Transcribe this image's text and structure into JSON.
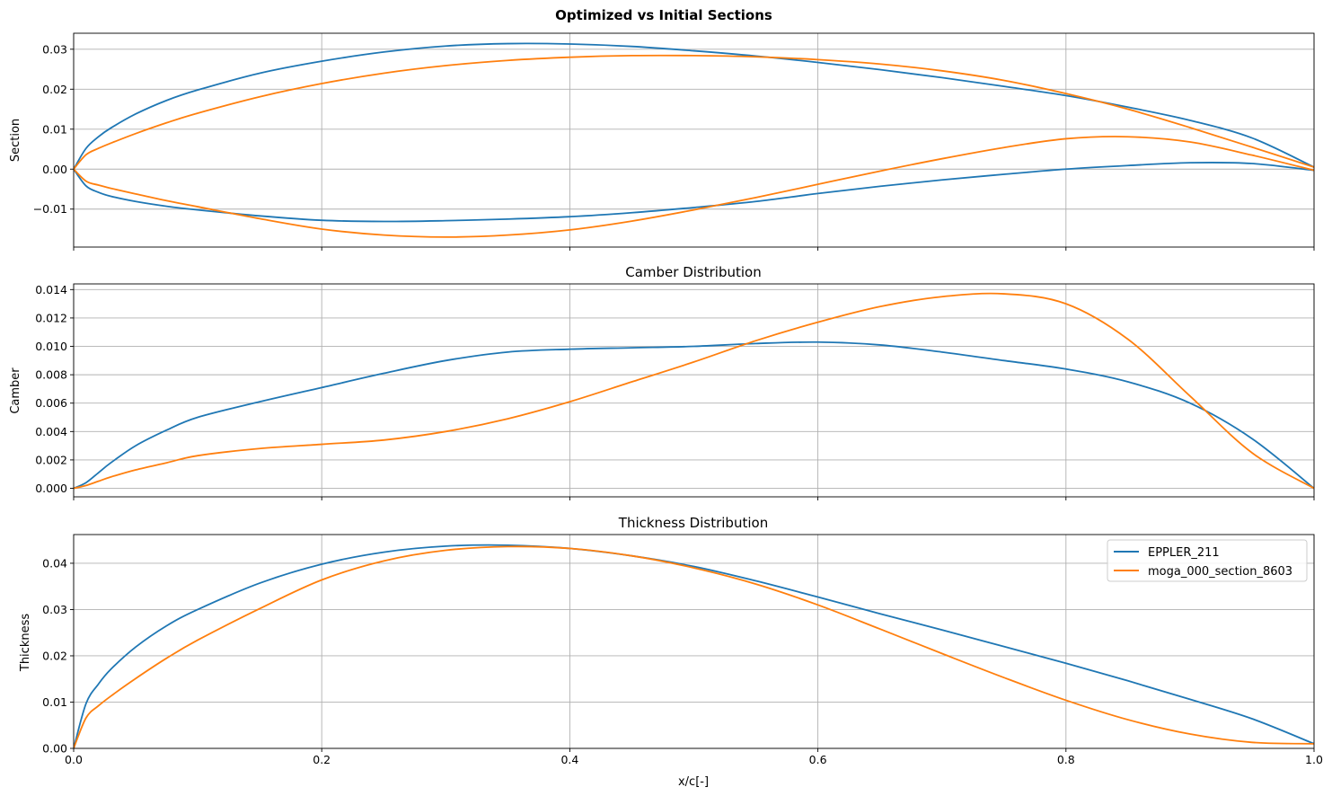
{
  "figure_title": "Optimized vs Initial Sections",
  "colors": {
    "EPPLER_211": "#1f77b4",
    "moga_000_section_8603": "#ff7f0e"
  },
  "chart_data": [
    {
      "type": "line",
      "title": "",
      "xlabel": "",
      "ylabel": "Section",
      "xlim": [
        0,
        1
      ],
      "ylim": [
        -0.0195,
        0.034
      ],
      "xticks": [
        0.0,
        0.2,
        0.4,
        0.6,
        0.8,
        1.0
      ],
      "xticklabels_shown": false,
      "yticks": [
        -0.01,
        0.0,
        0.01,
        0.02,
        0.03
      ],
      "yticklabels": [
        "−0.01",
        "0.00",
        "0.01",
        "0.02",
        "0.03"
      ],
      "grid": true,
      "series": [
        {
          "name": "EPPLER_211 upper",
          "color": "#1f77b4",
          "x": [
            0,
            0.01,
            0.02,
            0.03,
            0.05,
            0.075,
            0.1,
            0.15,
            0.2,
            0.25,
            0.3,
            0.35,
            0.4,
            0.45,
            0.5,
            0.55,
            0.6,
            0.65,
            0.7,
            0.75,
            0.8,
            0.85,
            0.9,
            0.95,
            1.0
          ],
          "y": [
            0,
            0.0052,
            0.0081,
            0.0103,
            0.0138,
            0.0172,
            0.0198,
            0.024,
            0.027,
            0.0293,
            0.0308,
            0.0314,
            0.0313,
            0.0307,
            0.0296,
            0.0283,
            0.0267,
            0.0249,
            0.0229,
            0.0207,
            0.0184,
            0.0155,
            0.0122,
            0.0078,
            0.0005
          ]
        },
        {
          "name": "EPPLER_211 lower",
          "color": "#1f77b4",
          "x": [
            0,
            0.01,
            0.02,
            0.03,
            0.05,
            0.075,
            0.1,
            0.15,
            0.2,
            0.25,
            0.3,
            0.35,
            0.4,
            0.45,
            0.5,
            0.55,
            0.6,
            0.65,
            0.7,
            0.75,
            0.8,
            0.85,
            0.9,
            0.95,
            1.0
          ],
          "y": [
            0,
            -0.0042,
            -0.0058,
            -0.0068,
            -0.0081,
            -0.0093,
            -0.0102,
            -0.0117,
            -0.0128,
            -0.0131,
            -0.0129,
            -0.0125,
            -0.0119,
            -0.0109,
            -0.0096,
            -0.0081,
            -0.0061,
            -0.0043,
            -0.0027,
            -0.0013,
            0.0,
            0.0009,
            0.0016,
            0.0014,
            -0.0003
          ]
        },
        {
          "name": "moga_000_section_8603 upper",
          "color": "#ff7f0e",
          "x": [
            0,
            0.01,
            0.02,
            0.03,
            0.05,
            0.075,
            0.1,
            0.15,
            0.2,
            0.25,
            0.3,
            0.35,
            0.4,
            0.45,
            0.5,
            0.55,
            0.6,
            0.65,
            0.7,
            0.75,
            0.8,
            0.85,
            0.9,
            0.95,
            1.0
          ],
          "y": [
            0,
            0.0036,
            0.0052,
            0.0065,
            0.0089,
            0.0116,
            0.014,
            0.0181,
            0.0214,
            0.024,
            0.0259,
            0.0272,
            0.028,
            0.0284,
            0.0284,
            0.0281,
            0.0274,
            0.0263,
            0.0246,
            0.0222,
            0.0189,
            0.015,
            0.0104,
            0.0055,
            0.0005
          ]
        },
        {
          "name": "moga_000_section_8603 lower",
          "color": "#ff7f0e",
          "x": [
            0,
            0.01,
            0.02,
            0.03,
            0.05,
            0.075,
            0.1,
            0.15,
            0.2,
            0.25,
            0.3,
            0.35,
            0.4,
            0.45,
            0.5,
            0.55,
            0.6,
            0.65,
            0.7,
            0.75,
            0.8,
            0.85,
            0.9,
            0.95,
            1.0
          ],
          "y": [
            0,
            -0.003,
            -0.004,
            -0.0048,
            -0.0062,
            -0.0079,
            -0.0094,
            -0.0124,
            -0.015,
            -0.0165,
            -0.017,
            -0.0165,
            -0.0152,
            -0.013,
            -0.0102,
            -0.0071,
            -0.0038,
            -0.0005,
            0.0026,
            0.0054,
            0.0076,
            0.0081,
            0.0068,
            0.0035,
            -0.0003
          ]
        }
      ]
    },
    {
      "type": "line",
      "title": "Camber Distribution",
      "xlabel": "",
      "ylabel": "Camber",
      "xlim": [
        0,
        1
      ],
      "ylim": [
        -0.0006,
        0.0144
      ],
      "xticks": [
        0.0,
        0.2,
        0.4,
        0.6,
        0.8,
        1.0
      ],
      "xticklabels_shown": false,
      "yticks": [
        0.0,
        0.002,
        0.004,
        0.006,
        0.008,
        0.01,
        0.012,
        0.014
      ],
      "yticklabels": [
        "0.000",
        "0.002",
        "0.004",
        "0.006",
        "0.008",
        "0.010",
        "0.012",
        "0.014"
      ],
      "grid": true,
      "series": [
        {
          "name": "EPPLER_211",
          "color": "#1f77b4",
          "x": [
            0,
            0.01,
            0.02,
            0.03,
            0.05,
            0.075,
            0.1,
            0.15,
            0.2,
            0.25,
            0.3,
            0.35,
            0.4,
            0.45,
            0.5,
            0.55,
            0.6,
            0.65,
            0.7,
            0.75,
            0.8,
            0.85,
            0.9,
            0.95,
            1.0
          ],
          "y": [
            0,
            0.0004,
            0.0011,
            0.0018,
            0.003,
            0.0041,
            0.005,
            0.0061,
            0.0071,
            0.0081,
            0.009,
            0.0096,
            0.0098,
            0.0099,
            0.01,
            0.0102,
            0.0103,
            0.0101,
            0.0096,
            0.009,
            0.0084,
            0.0075,
            0.006,
            0.0035,
            0.0
          ]
        },
        {
          "name": "moga_000_section_8603",
          "color": "#ff7f0e",
          "x": [
            0,
            0.01,
            0.02,
            0.03,
            0.05,
            0.075,
            0.1,
            0.15,
            0.2,
            0.25,
            0.3,
            0.35,
            0.4,
            0.45,
            0.5,
            0.55,
            0.6,
            0.65,
            0.7,
            0.75,
            0.8,
            0.85,
            0.9,
            0.95,
            1.0
          ],
          "y": [
            0,
            0.0002,
            0.0005,
            0.0008,
            0.0013,
            0.0018,
            0.0023,
            0.0028,
            0.0031,
            0.0034,
            0.004,
            0.0049,
            0.0061,
            0.0075,
            0.0089,
            0.0104,
            0.0117,
            0.0128,
            0.0135,
            0.0137,
            0.013,
            0.0105,
            0.0065,
            0.0025,
            0.0
          ]
        }
      ]
    },
    {
      "type": "line",
      "title": "Thickness Distribution",
      "xlabel": "x/c[-]",
      "ylabel": "Thickness",
      "xlim": [
        0,
        1
      ],
      "ylim": [
        0,
        0.0462
      ],
      "xticks": [
        0.0,
        0.2,
        0.4,
        0.6,
        0.8,
        1.0
      ],
      "xticklabels": [
        "0.0",
        "0.2",
        "0.4",
        "0.6",
        "0.8",
        "1.0"
      ],
      "yticks": [
        0.0,
        0.01,
        0.02,
        0.03,
        0.04
      ],
      "yticklabels": [
        "0.00",
        "0.01",
        "0.02",
        "0.03",
        "0.04"
      ],
      "grid": true,
      "legend": {
        "placement": "top-right",
        "entries": [
          "EPPLER_211",
          "moga_000_section_8603"
        ]
      },
      "series": [
        {
          "name": "EPPLER_211",
          "color": "#1f77b4",
          "x": [
            0,
            0.01,
            0.02,
            0.03,
            0.05,
            0.075,
            0.1,
            0.15,
            0.2,
            0.25,
            0.3,
            0.35,
            0.4,
            0.45,
            0.5,
            0.55,
            0.6,
            0.65,
            0.7,
            0.75,
            0.8,
            0.85,
            0.9,
            0.95,
            1.0
          ],
          "y": [
            0,
            0.0097,
            0.0139,
            0.0171,
            0.0219,
            0.0265,
            0.03,
            0.0357,
            0.0398,
            0.0424,
            0.0437,
            0.0439,
            0.0432,
            0.0416,
            0.0393,
            0.0362,
            0.0327,
            0.0291,
            0.0256,
            0.022,
            0.0184,
            0.0146,
            0.0106,
            0.0064,
            0.001
          ]
        },
        {
          "name": "moga_000_section_8603",
          "color": "#ff7f0e",
          "x": [
            0,
            0.01,
            0.02,
            0.03,
            0.05,
            0.075,
            0.1,
            0.15,
            0.2,
            0.25,
            0.3,
            0.35,
            0.4,
            0.45,
            0.5,
            0.55,
            0.6,
            0.65,
            0.7,
            0.75,
            0.8,
            0.85,
            0.9,
            0.95,
            1.0
          ],
          "y": [
            0,
            0.0066,
            0.0092,
            0.0113,
            0.0151,
            0.0195,
            0.0234,
            0.0302,
            0.0364,
            0.0405,
            0.0428,
            0.0436,
            0.0432,
            0.0416,
            0.039,
            0.0355,
            0.031,
            0.0258,
            0.0205,
            0.0153,
            0.0104,
            0.0062,
            0.0031,
            0.0013,
            0.001
          ]
        }
      ]
    }
  ]
}
